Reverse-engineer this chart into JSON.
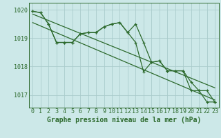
{
  "bg_color": "#cce8e8",
  "grid_color": "#aacccc",
  "line_color": "#2d6a2d",
  "title": "Graphe pression niveau de la mer (hPa)",
  "title_color": "#2d6a2d",
  "xlim": [
    -0.5,
    23.5
  ],
  "ylim": [
    1016.55,
    1020.25
  ],
  "yticks": [
    1017,
    1018,
    1019,
    1020
  ],
  "xticks": [
    0,
    1,
    2,
    3,
    4,
    5,
    6,
    7,
    8,
    9,
    10,
    11,
    12,
    13,
    14,
    15,
    16,
    17,
    18,
    19,
    20,
    21,
    22,
    23
  ],
  "series1": [
    1019.95,
    1019.9,
    1019.5,
    1018.85,
    1018.85,
    1018.85,
    1019.15,
    1019.2,
    1019.2,
    1019.4,
    1019.5,
    1019.55,
    1019.2,
    1019.5,
    1018.85,
    1018.15,
    1018.2,
    1017.85,
    1017.85,
    1017.85,
    1017.15,
    1017.15,
    1016.75,
    1016.75
  ],
  "series2": [
    1019.95,
    1019.9,
    1019.5,
    1018.85,
    1018.85,
    1018.85,
    1019.15,
    1019.2,
    1019.2,
    1019.4,
    1019.5,
    1019.55,
    1019.2,
    1018.85,
    1017.82,
    1018.15,
    1018.2,
    1017.85,
    1017.85,
    1017.85,
    1017.45,
    1017.15,
    1017.15,
    1016.75
  ],
  "trend1_x": [
    0,
    23
  ],
  "trend1_y": [
    1019.85,
    1017.25
  ],
  "trend2_x": [
    0,
    23
  ],
  "trend2_y": [
    1019.55,
    1016.82
  ],
  "xlabel_fontsize": 7,
  "tick_fontsize": 6
}
